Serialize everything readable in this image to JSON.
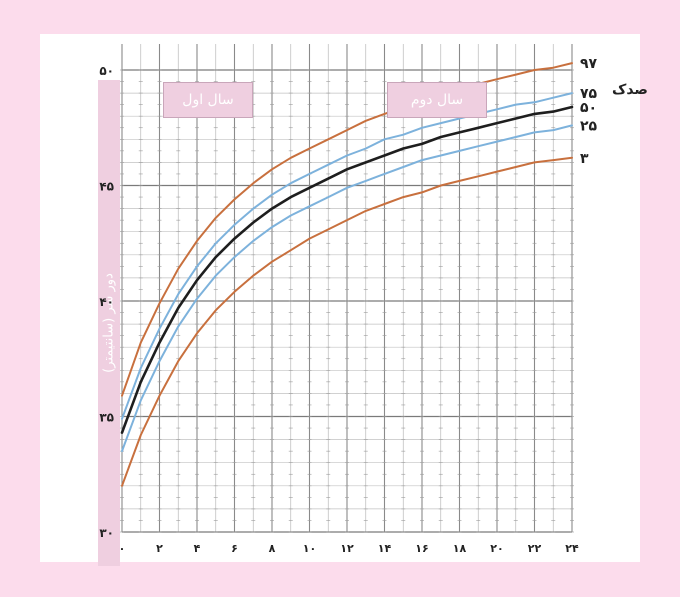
{
  "chart_data": {
    "type": "line",
    "title": "",
    "xlabel": "",
    "ylabel": "دور سر (سانتیمتر)",
    "x_tick_labels": [
      "۰",
      "۲",
      "۴",
      "۶",
      "۸",
      "۱۰",
      "۱۲",
      "۱۴",
      "۱۶",
      "۱۸",
      "۲۰",
      "۲۲",
      "۲۴"
    ],
    "x_tick_values": [
      0,
      2,
      4,
      6,
      8,
      10,
      12,
      14,
      16,
      18,
      20,
      22,
      24
    ],
    "y_tick_labels": [
      "۳۰",
      "۳۵",
      "۴۰",
      "۴۵",
      "۵۰"
    ],
    "y_tick_values": [
      30,
      35,
      40,
      45,
      50
    ],
    "xlim": [
      0,
      24
    ],
    "ylim": [
      30,
      50
    ],
    "grid": true,
    "period_labels": {
      "year1": "سال اول",
      "year2": "سال دوم"
    },
    "percentile_title": "صدک",
    "x": [
      0,
      1,
      2,
      3,
      4,
      5,
      6,
      7,
      8,
      9,
      10,
      11,
      12,
      13,
      14,
      15,
      16,
      17,
      18,
      19,
      20,
      21,
      22,
      23,
      24
    ],
    "series": [
      {
        "name": "۹۷",
        "color": "#c8703e",
        "values": [
          35.9,
          38.2,
          39.9,
          41.4,
          42.6,
          43.6,
          44.4,
          45.1,
          45.7,
          46.2,
          46.6,
          47.0,
          47.4,
          47.8,
          48.1,
          48.4,
          48.7,
          48.9,
          49.2,
          49.4,
          49.6,
          49.8,
          50.0,
          50.1,
          50.3
        ]
      },
      {
        "name": "۷۵",
        "color": "#7db2dc",
        "values": [
          34.9,
          37.1,
          38.8,
          40.3,
          41.5,
          42.5,
          43.3,
          44.0,
          44.6,
          45.1,
          45.5,
          45.9,
          46.3,
          46.6,
          47.0,
          47.2,
          47.5,
          47.7,
          47.9,
          48.1,
          48.3,
          48.5,
          48.6,
          48.8,
          49.0
        ]
      },
      {
        "name": "۵۰",
        "color": "#1e1e1e",
        "values": [
          34.3,
          36.5,
          38.2,
          39.7,
          40.9,
          41.9,
          42.7,
          43.4,
          44.0,
          44.5,
          44.9,
          45.3,
          45.7,
          46.0,
          46.3,
          46.6,
          46.8,
          47.1,
          47.3,
          47.5,
          47.7,
          47.9,
          48.1,
          48.2,
          48.4
        ]
      },
      {
        "name": "۲۵",
        "color": "#7db2dc",
        "values": [
          33.5,
          35.7,
          37.4,
          38.9,
          40.1,
          41.1,
          41.9,
          42.6,
          43.2,
          43.7,
          44.1,
          44.5,
          44.9,
          45.2,
          45.5,
          45.8,
          46.1,
          46.3,
          46.5,
          46.7,
          46.9,
          47.1,
          47.3,
          47.4,
          47.6
        ]
      },
      {
        "name": "۳",
        "color": "#c8703e",
        "values": [
          32.0,
          34.2,
          35.9,
          37.4,
          38.6,
          39.6,
          40.4,
          41.1,
          41.7,
          42.2,
          42.7,
          43.1,
          43.5,
          43.9,
          44.2,
          44.5,
          44.7,
          45.0,
          45.2,
          45.4,
          45.6,
          45.8,
          46.0,
          46.1,
          46.2
        ]
      }
    ]
  }
}
